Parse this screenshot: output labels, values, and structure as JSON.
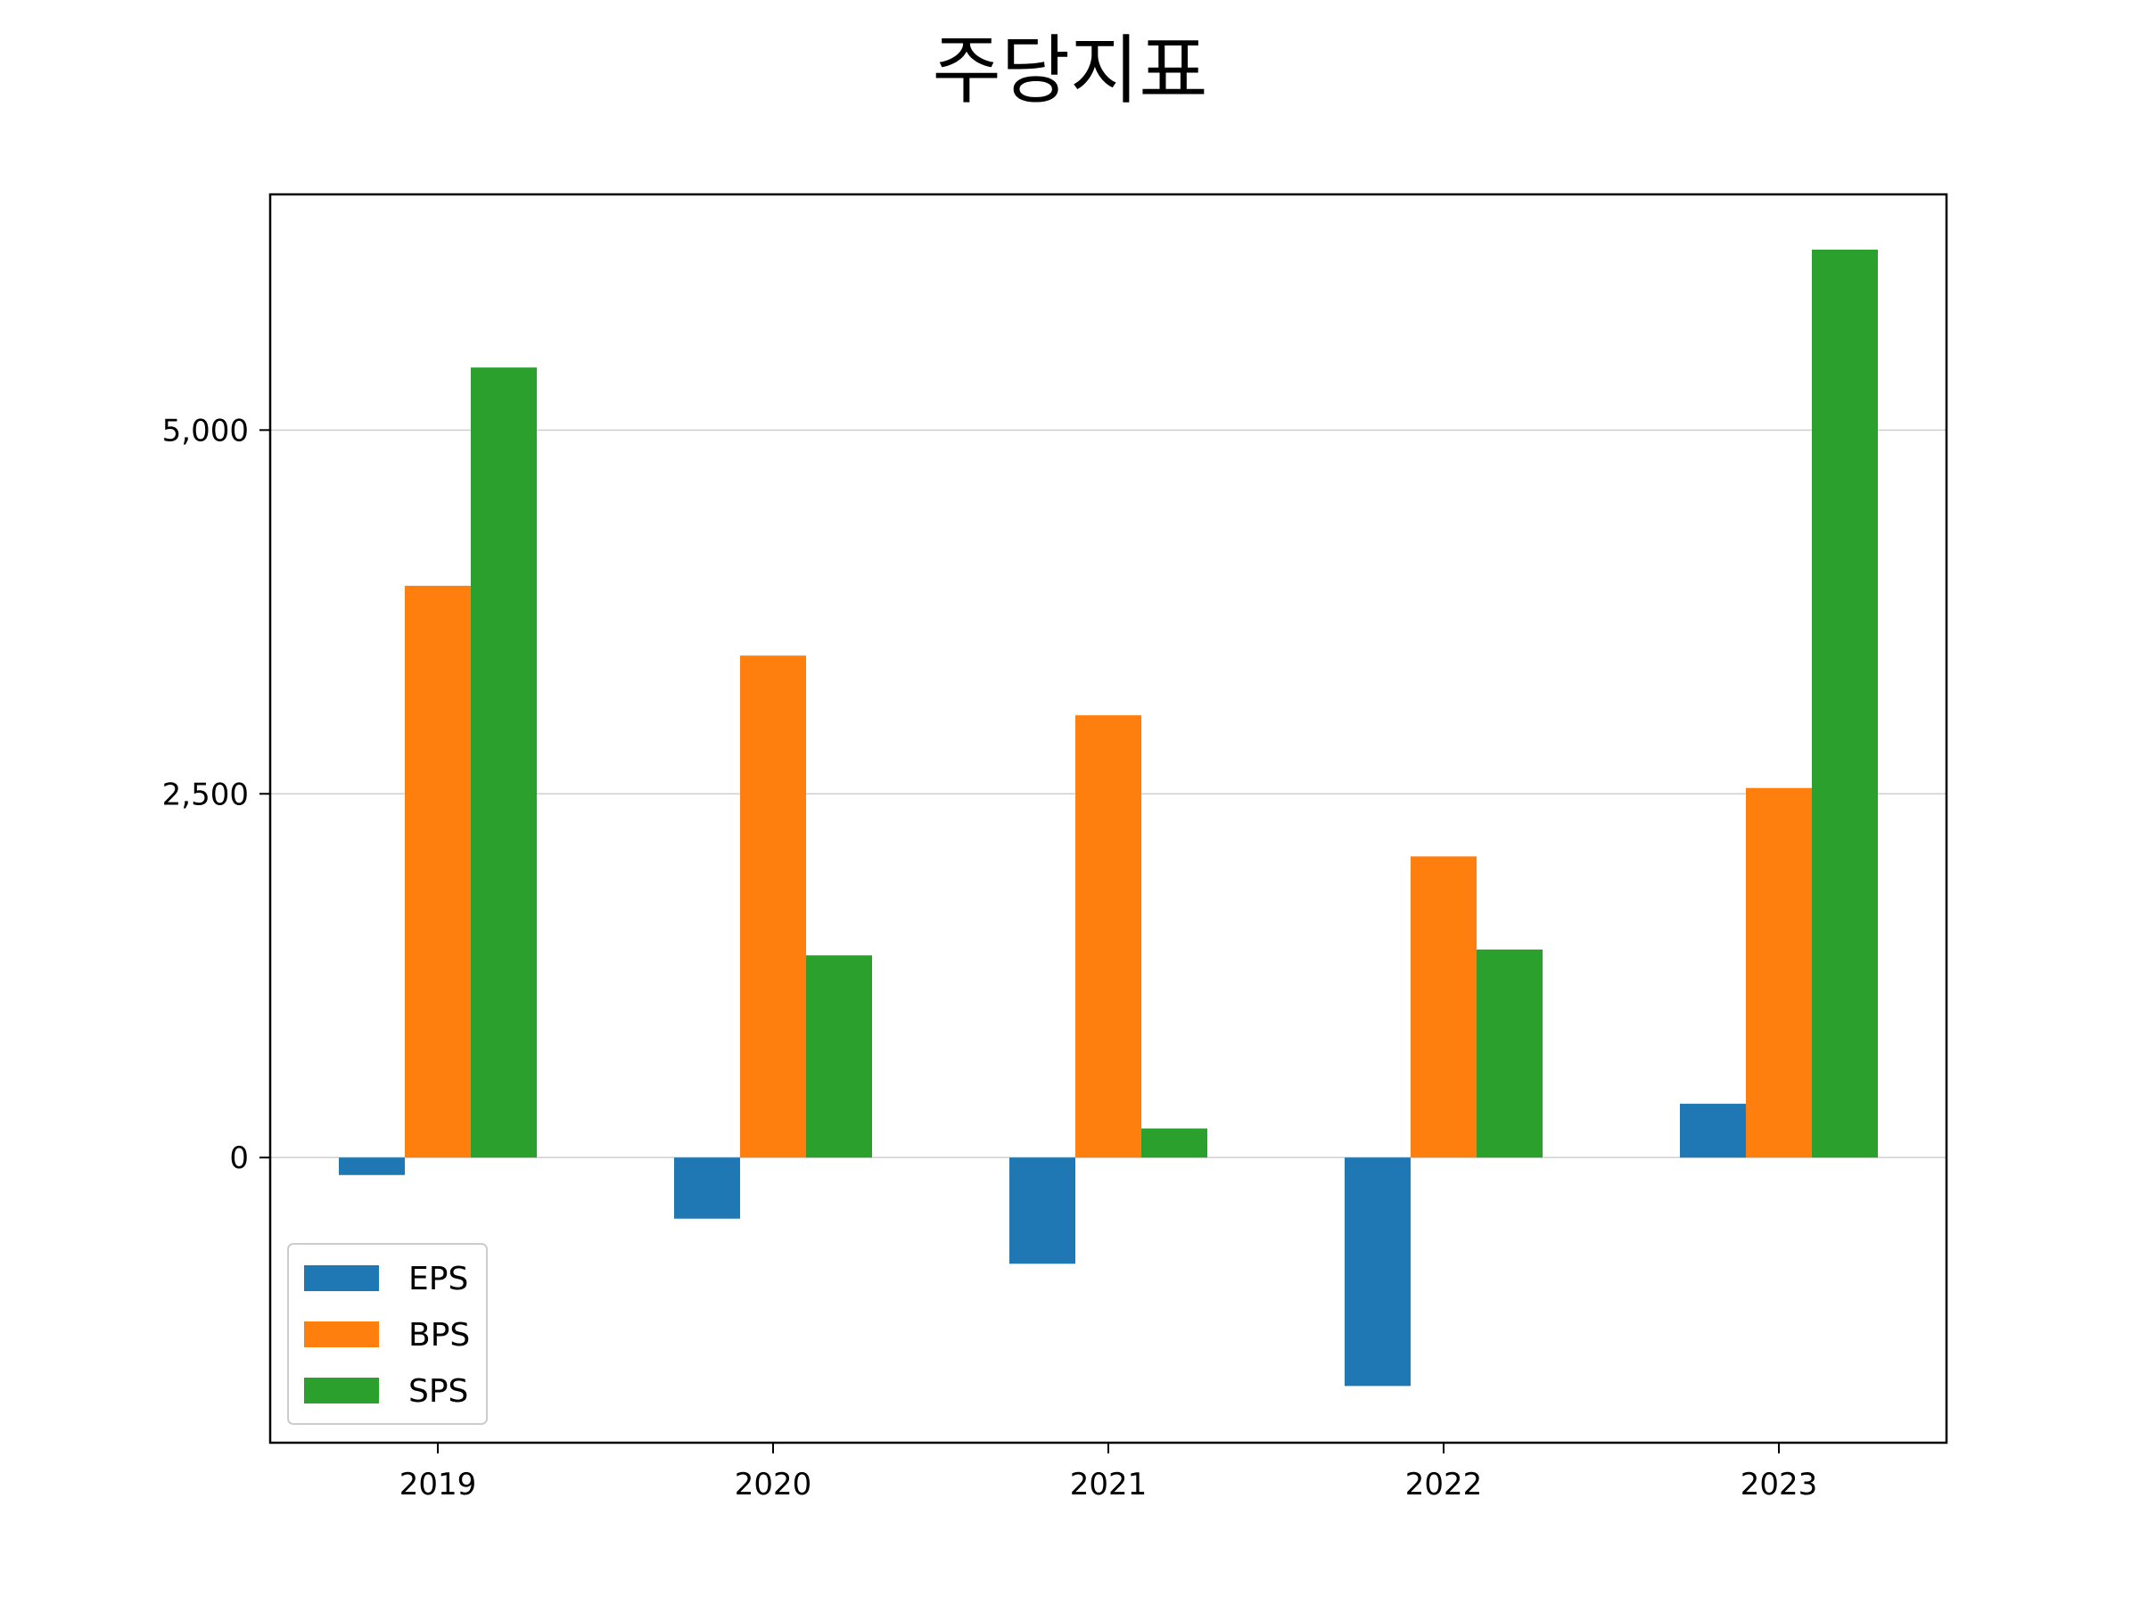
{
  "chart_data": {
    "type": "bar",
    "title": "주당지표",
    "xlabel": "",
    "ylabel": "",
    "categories": [
      "2019",
      "2020",
      "2021",
      "2022",
      "2023"
    ],
    "series": [
      {
        "name": "EPS",
        "color": "#1f77b4",
        "values": [
          -120,
          -420,
          -730,
          -1570,
          370
        ]
      },
      {
        "name": "BPS",
        "color": "#ff7f0e",
        "values": [
          3930,
          3450,
          3040,
          2070,
          2540
        ]
      },
      {
        "name": "SPS",
        "color": "#2ca02c",
        "values": [
          5430,
          1390,
          200,
          1430,
          6240
        ]
      }
    ],
    "ylim": [
      -1960,
      6620
    ],
    "yticks": [
      0,
      2500,
      5000
    ],
    "ytick_labels": [
      "0",
      "2,500",
      "5,000"
    ],
    "grid": "y",
    "legend_position": "lower-left"
  }
}
